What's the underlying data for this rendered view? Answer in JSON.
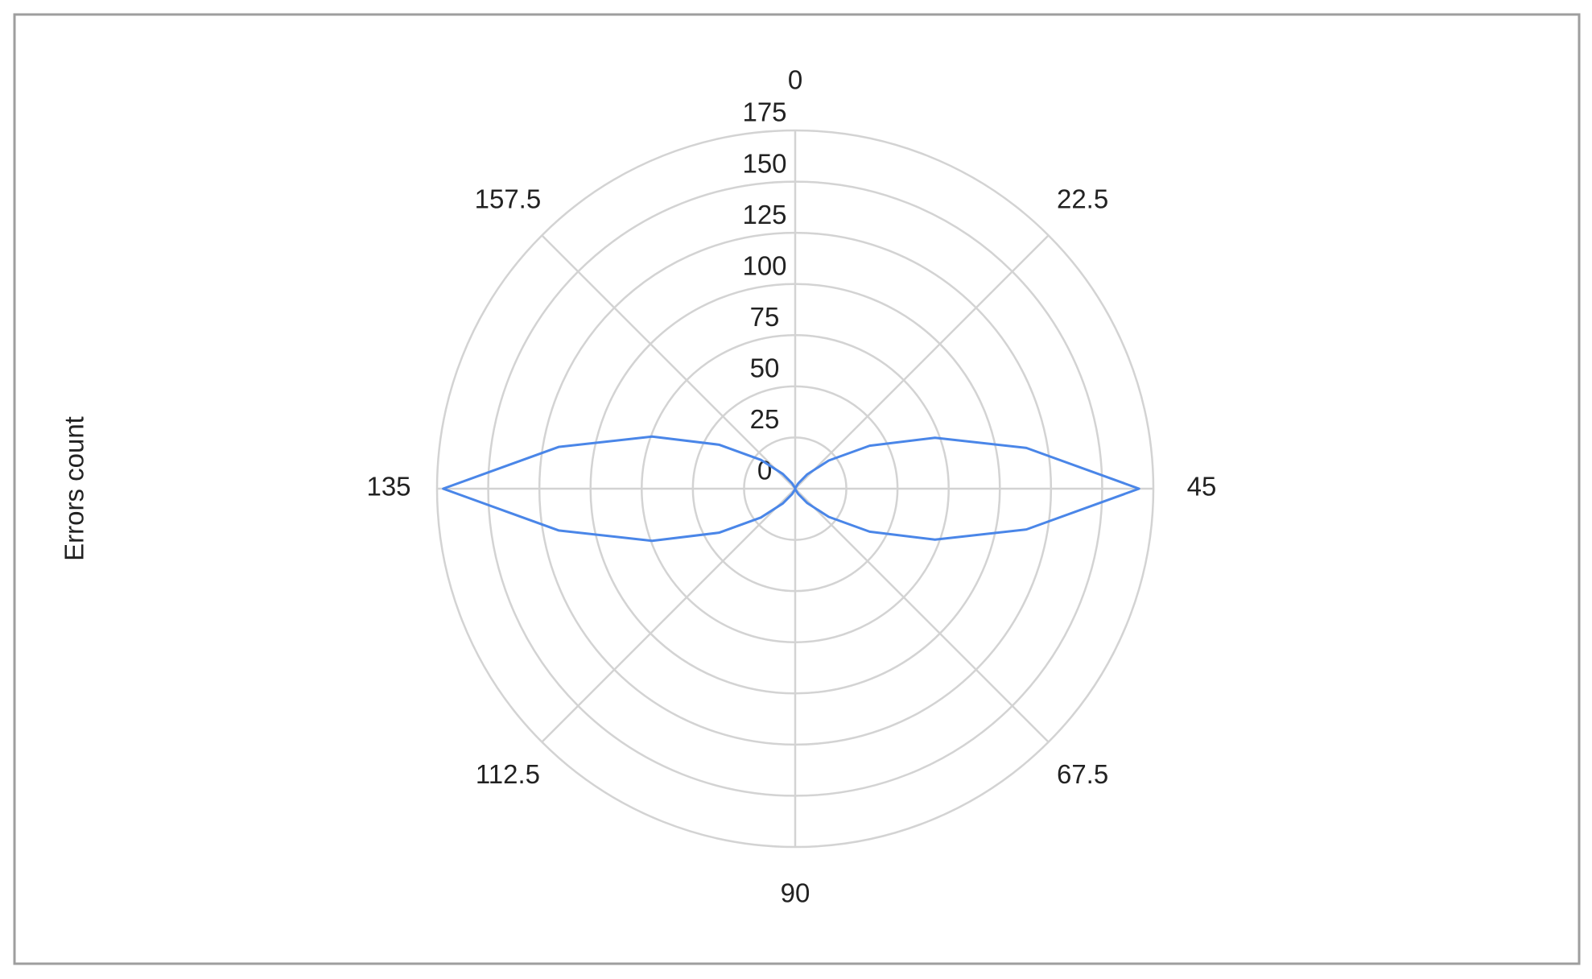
{
  "chart_data": {
    "type": "polar-line",
    "y_axis_label": "Errors count",
    "x": [
      0,
      5,
      10,
      15,
      20,
      25,
      30,
      35,
      40,
      45,
      50,
      55,
      60,
      65,
      70,
      75,
      80,
      85,
      90,
      95,
      100,
      105,
      110,
      115,
      120,
      125,
      130,
      135,
      140,
      145,
      150,
      155,
      160,
      165,
      170,
      175,
      180
    ],
    "values": [
      0,
      0,
      0.6,
      3,
      9.2,
      21.4,
      42,
      72.7,
      114.7,
      168,
      114.7,
      72.7,
      42,
      21.4,
      9.2,
      3,
      0.6,
      0,
      0,
      0,
      0.6,
      3.1,
      9.4,
      21.9,
      43,
      74.4,
      117.4,
      172,
      117.4,
      74.4,
      43,
      21.9,
      9.4,
      3.1,
      0.6,
      0,
      0
    ],
    "color": "#4a86e8",
    "xlim": [
      0,
      180
    ],
    "xticks": [
      0,
      22.5,
      45,
      67.5,
      90,
      112.5,
      135,
      157.5
    ],
    "ylim": [
      0,
      175
    ],
    "yticks": [
      0,
      25,
      50,
      75,
      100,
      125,
      150,
      175
    ],
    "grid": true
  }
}
